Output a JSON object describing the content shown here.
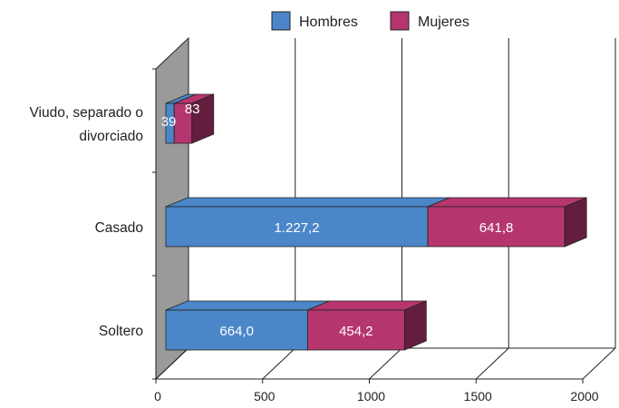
{
  "chart_data": {
    "type": "bar",
    "orientation": "horizontal",
    "stacked": true,
    "three_d": true,
    "categories": [
      "Viudo, separado o divorciado",
      "Casado",
      "Soltero"
    ],
    "category_lines": [
      [
        "Viudo, separado o",
        "divorciado"
      ],
      [
        "Casado"
      ],
      [
        "Soltero"
      ]
    ],
    "series": [
      {
        "name": "Hombres",
        "color": "#4a86c8",
        "values": [
          39,
          1227.2,
          664.0
        ],
        "labels": [
          "39",
          "1.227,2",
          "664,0"
        ]
      },
      {
        "name": "Mujeres",
        "color": "#b5366e",
        "values": [
          83,
          641.8,
          454.2
        ],
        "labels": [
          "83",
          "641,8",
          "454,2"
        ]
      }
    ],
    "xlim": [
      0,
      2000
    ],
    "xticks": [
      0,
      500,
      1000,
      1500,
      2000
    ],
    "xtick_labels": [
      "0",
      "500",
      "1000",
      "1500",
      "2000"
    ],
    "grid": true,
    "legend": "top",
    "wall_color": "#9a9a9a"
  }
}
